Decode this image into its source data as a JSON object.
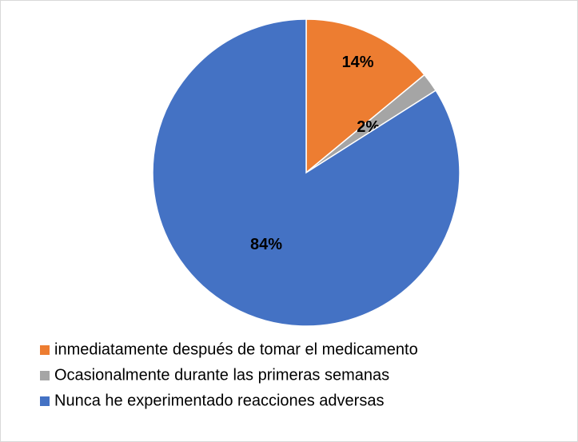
{
  "chart_data": {
    "type": "pie",
    "categories": [
      "inmediatamente después de tomar el medicamento",
      "Ocasionalmente durante las primeras semanas",
      "Nunca he experimentado reacciones adversas"
    ],
    "values": [
      14,
      2,
      84
    ],
    "value_labels": [
      "14%",
      "2%",
      "84%"
    ],
    "colors": [
      "#ed7d31",
      "#a5a5a5",
      "#4472c4"
    ],
    "legend": "bottom"
  }
}
